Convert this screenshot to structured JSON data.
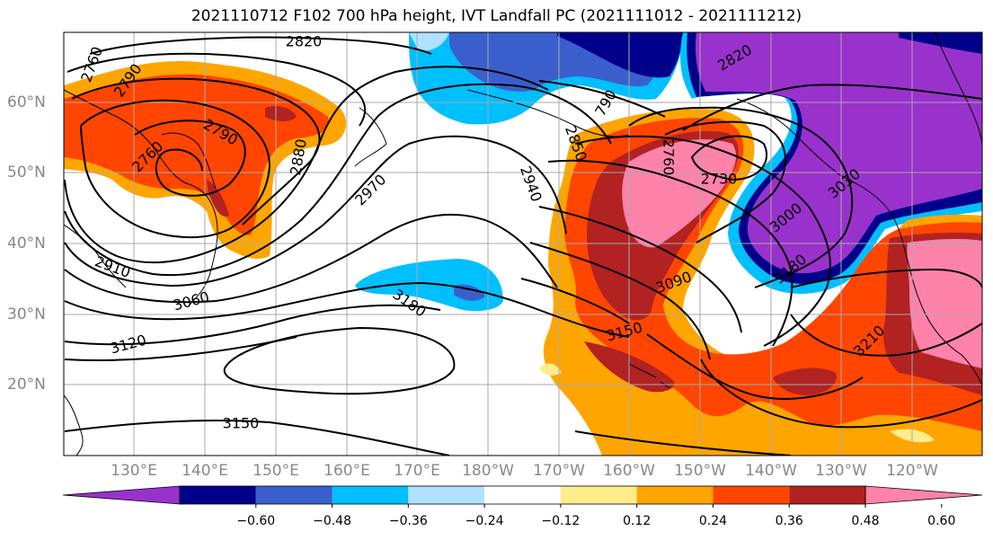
{
  "title": "2021110712 F102 700 hPa height, IVT Landfall PC (2021111012 - 2021111212)",
  "lat_labels": [
    "60°N",
    "50°N",
    "40°N",
    "30°N",
    "20°N"
  ],
  "lon_labels": [
    "130°E",
    "140°E",
    "150°E",
    "160°E",
    "170°E",
    "180°W",
    "170°W",
    "160°W",
    "150°W",
    "140°W",
    "130°W",
    "120°W"
  ],
  "colorbar": {
    "ticks": [
      "−0.60",
      "−0.48",
      "−0.36",
      "−0.24",
      "−0.12",
      "0.12",
      "0.24",
      "0.36",
      "0.48",
      "0.60"
    ],
    "colors": [
      "#9932cc",
      "#00008b",
      "#3a5fcd",
      "#00bfff",
      "#b0e2ff",
      "#ffffff",
      "#ffec8b",
      "#ffa500",
      "#ff4500",
      "#b22222",
      "#ff82ab"
    ]
  },
  "contour_labels": [
    {
      "id": "c2820a",
      "text": "2820"
    },
    {
      "id": "c2760a",
      "text": "2760"
    },
    {
      "id": "c2790a",
      "text": "2790"
    },
    {
      "id": "c2790b",
      "text": "2790"
    },
    {
      "id": "c2760b",
      "text": "2760"
    },
    {
      "id": "c2880",
      "text": "2880"
    },
    {
      "id": "c2970",
      "text": "2970"
    },
    {
      "id": "c2910",
      "text": "2910"
    },
    {
      "id": "c3060",
      "text": "3060"
    },
    {
      "id": "c3120",
      "text": "3120"
    },
    {
      "id": "c3180a",
      "text": "3180"
    },
    {
      "id": "c3150a",
      "text": "3150"
    },
    {
      "id": "c2820b",
      "text": "2820"
    },
    {
      "id": "c2790c",
      "text": "790"
    },
    {
      "id": "c2850",
      "text": "2850"
    },
    {
      "id": "c2940",
      "text": "2940"
    },
    {
      "id": "c2760c",
      "text": "2760"
    },
    {
      "id": "c2730",
      "text": "2730"
    },
    {
      "id": "c3000",
      "text": "3000"
    },
    {
      "id": "c3030",
      "text": "3030"
    },
    {
      "id": "c3090",
      "text": "3090"
    },
    {
      "id": "c3150b",
      "text": "3150"
    },
    {
      "id": "c3180b",
      "text": "3180"
    },
    {
      "id": "c3210",
      "text": "3210"
    }
  ]
}
